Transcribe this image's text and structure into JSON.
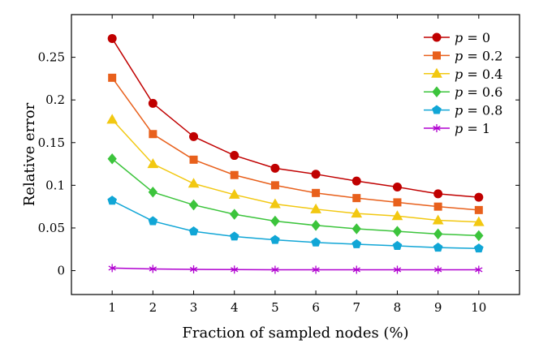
{
  "chart_data": {
    "type": "line",
    "title": "",
    "xlabel": "Fraction of sampled nodes (%)",
    "ylabel": "Relative error",
    "x": [
      1,
      2,
      3,
      4,
      5,
      6,
      7,
      8,
      9,
      10
    ],
    "xlim": [
      0,
      11
    ],
    "ylim": [
      -0.028,
      0.3
    ],
    "xticks": [
      "1",
      "2",
      "3",
      "4",
      "5",
      "6",
      "7",
      "8",
      "9",
      "10"
    ],
    "xtick_values": [
      1,
      2,
      3,
      4,
      5,
      6,
      7,
      8,
      9,
      10
    ],
    "yticks": [
      "0",
      "0.05",
      "0.1",
      "0.15",
      "0.2",
      "0.25"
    ],
    "ytick_values": [
      0,
      0.05,
      0.1,
      0.15,
      0.2,
      0.25
    ],
    "grid": false,
    "legend_position": "top-right",
    "series": [
      {
        "name": "p = 0",
        "legend_var": "p",
        "legend_eq": " = 0",
        "color": "#c00000",
        "marker": "circle",
        "values": [
          0.272,
          0.196,
          0.157,
          0.135,
          0.12,
          0.113,
          0.105,
          0.098,
          0.09,
          0.086
        ]
      },
      {
        "name": "p = 0.2",
        "legend_var": "p",
        "legend_eq": " = 0.2",
        "color": "#e8601c",
        "marker": "square",
        "values": [
          0.226,
          0.16,
          0.13,
          0.112,
          0.1,
          0.091,
          0.085,
          0.08,
          0.075,
          0.071
        ]
      },
      {
        "name": "p = 0.4",
        "legend_var": "p",
        "legend_eq": " = 0.4",
        "color": "#f2c811",
        "marker": "triangle",
        "values": [
          0.177,
          0.125,
          0.102,
          0.089,
          0.078,
          0.072,
          0.067,
          0.064,
          0.059,
          0.057
        ]
      },
      {
        "name": "p = 0.6",
        "legend_var": "p",
        "legend_eq": " = 0.6",
        "color": "#3cc43c",
        "marker": "diamond",
        "values": [
          0.131,
          0.092,
          0.077,
          0.066,
          0.058,
          0.053,
          0.049,
          0.046,
          0.043,
          0.041
        ]
      },
      {
        "name": "p = 0.8",
        "legend_var": "p",
        "legend_eq": " = 0.8",
        "color": "#11a6d6",
        "marker": "pentagon",
        "values": [
          0.082,
          0.058,
          0.046,
          0.04,
          0.036,
          0.033,
          0.031,
          0.029,
          0.027,
          0.026
        ]
      },
      {
        "name": "p = 1",
        "legend_var": "p",
        "legend_eq": " = 1",
        "color": "#b000d0",
        "marker": "asterisk",
        "values": [
          0.003,
          0.002,
          0.0015,
          0.0012,
          0.001,
          0.001,
          0.001,
          0.001,
          0.001,
          0.001
        ]
      }
    ]
  }
}
